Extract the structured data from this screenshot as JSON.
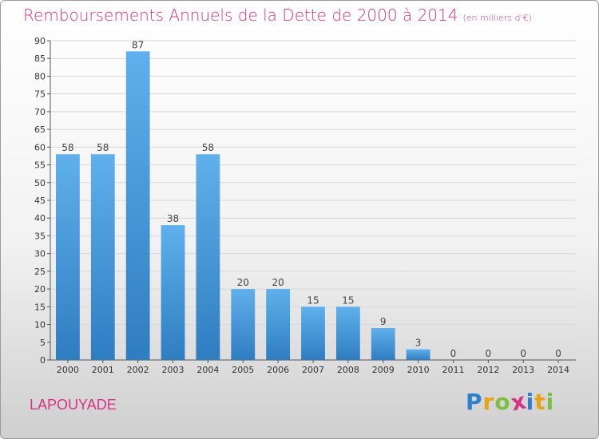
{
  "title": "Remboursements Annuels de la Dette de 2000 à 2014",
  "subtitle": "(en milliers d'€)",
  "commune": "LAPOUYADE",
  "brand": {
    "letters": [
      "P",
      "r",
      "o",
      "x",
      "i",
      "t",
      "i"
    ],
    "colors": [
      "#2f7fd1",
      "#e8a21a",
      "#7fbf3f",
      "#d63384",
      "#2f7fd1",
      "#e8a21a",
      "#7fbf3f"
    ]
  },
  "colors": {
    "title": "#d63384",
    "bar_top": "#5fb0ec",
    "bar_bottom": "#2f7dc1",
    "grid": "#d8d8d8"
  },
  "chart_data": {
    "type": "bar",
    "categories": [
      "2000",
      "2001",
      "2002",
      "2003",
      "2004",
      "2005",
      "2006",
      "2007",
      "2008",
      "2009",
      "2010",
      "2011",
      "2012",
      "2013",
      "2014"
    ],
    "values": [
      58,
      58,
      87,
      38,
      58,
      20,
      20,
      15,
      15,
      9,
      3,
      0,
      0,
      0,
      0
    ],
    "title": "Remboursements Annuels de la Dette de 2000 à 2014",
    "xlabel": "",
    "ylabel": "",
    "ylim": [
      0,
      90
    ],
    "yticks": [
      0,
      5,
      10,
      15,
      20,
      25,
      30,
      35,
      40,
      45,
      50,
      55,
      60,
      65,
      70,
      75,
      80,
      85,
      90
    ],
    "grid": true,
    "legend": "none"
  }
}
